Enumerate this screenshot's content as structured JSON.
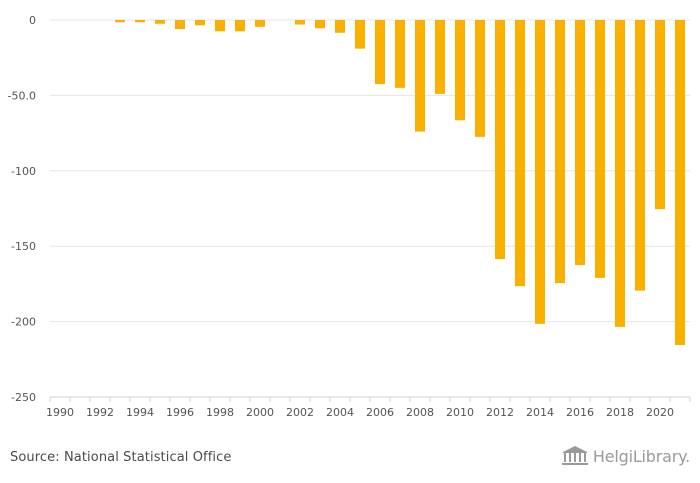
{
  "chart_data": {
    "type": "bar",
    "categories": [
      "1990",
      "1991",
      "1992",
      "1993",
      "1994",
      "1995",
      "1996",
      "1997",
      "1998",
      "1999",
      "2000",
      "2001",
      "2002",
      "2003",
      "2004",
      "2005",
      "2006",
      "2007",
      "2008",
      "2009",
      "2010",
      "2011",
      "2012",
      "2013",
      "2014",
      "2015",
      "2016",
      "2017",
      "2018",
      "2019",
      "2020",
      "2021"
    ],
    "values": [
      0,
      0,
      0,
      -1.5,
      -1.5,
      -2.5,
      -6,
      -3.5,
      -7.5,
      -7.5,
      -4.5,
      0,
      -3,
      -5.5,
      -8.5,
      -19,
      -42.5,
      -45,
      -74,
      -49,
      -66.5,
      -77.5,
      -158.5,
      -176.5,
      -201.5,
      -174.5,
      -162.5,
      -171,
      -203.5,
      -179.5,
      -125.5,
      -215.5
    ],
    "x_tick_labels": [
      "1990",
      "1992",
      "1994",
      "1996",
      "1998",
      "2000",
      "2002",
      "2004",
      "2006",
      "2008",
      "2010",
      "2012",
      "2014",
      "2016",
      "2018",
      "2020"
    ],
    "y_ticks": [
      0,
      -50,
      -100,
      -150,
      -200,
      -250
    ],
    "y_tick_labels": [
      "0",
      "-50.0",
      "-100",
      "-150",
      "-200",
      "-250"
    ],
    "ylim": [
      -250,
      0
    ],
    "bar_color": "#F9B000",
    "grid": true,
    "legend": "none",
    "title": "",
    "xlabel": "",
    "ylabel": ""
  },
  "footer": {
    "source": "Source: National Statistical Office",
    "brand": "HelgiLibrary."
  },
  "colors": {
    "grid": "#e6e6e6",
    "axis": "#d0d0d0",
    "tick_text": "#555555"
  }
}
